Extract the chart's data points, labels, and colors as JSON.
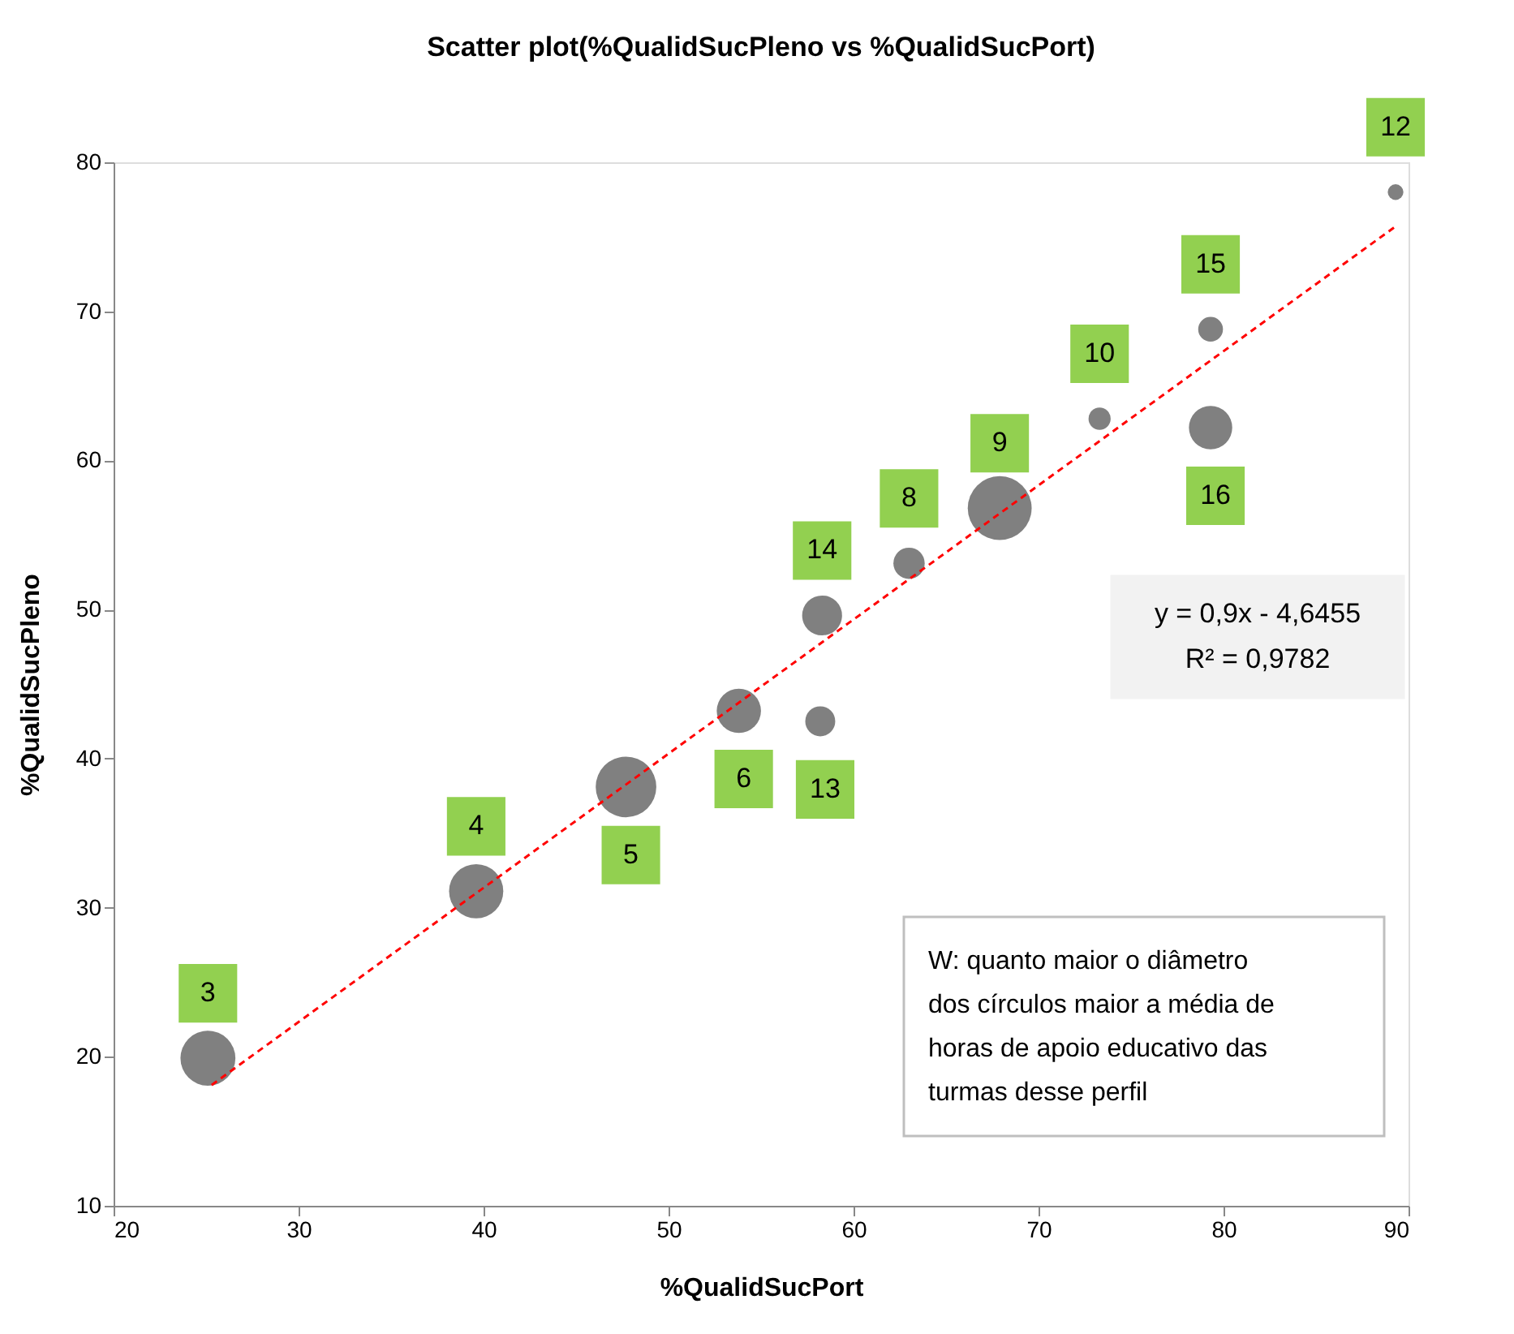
{
  "chart_data": {
    "type": "bubble",
    "title": "Scatter plot(%QualidSucPleno  vs %QualidSucPort)",
    "xlabel": "%QualidSucPort",
    "ylabel": "%QualidSucPleno",
    "xlim": [
      20,
      90
    ],
    "xticks": [
      20,
      30,
      40,
      50,
      60,
      70,
      80,
      90
    ],
    "ylim": [
      10,
      80
    ],
    "yticks": [
      10,
      20,
      30,
      40,
      50,
      60,
      70,
      80
    ],
    "grid": false,
    "legend": false,
    "marker": "circle",
    "series": [
      {
        "color": "#808080",
        "x": [
          25.1,
          39.6,
          47.7,
          53.8,
          58.2,
          58.3,
          63.0,
          67.9,
          73.3,
          79.3,
          79.3,
          89.3
        ],
        "values": [
          19.9,
          31.1,
          38.1,
          43.2,
          42.5,
          49.6,
          53.1,
          56.8,
          62.8,
          68.8,
          62.2,
          78.0
        ],
        "sizes": [
          0.74,
          0.72,
          0.9,
          0.48,
          0.22,
          0.39,
          0.24,
          1,
          0.12,
          0.15,
          0.46,
          0.06
        ]
      },
      {
        "type": "line",
        "color": "#ff0000",
        "line_style": "dashed",
        "marker": "none",
        "x": [
          25.3,
          89.3
        ],
        "values": [
          18.1,
          75.7
        ]
      }
    ],
    "annotations": [
      {
        "text": "3",
        "x": 25.1,
        "y": 19.9
      },
      {
        "text": "4",
        "x": 39.6,
        "y": 31.1
      },
      {
        "text": "5",
        "x": 47.7,
        "y": 38.1
      },
      {
        "text": "6",
        "x": 53.8,
        "y": 43.2
      },
      {
        "text": "13",
        "x": 58.2,
        "y": 42.5
      },
      {
        "text": "14",
        "x": 58.3,
        "y": 49.6
      },
      {
        "text": "8",
        "x": 63.0,
        "y": 53.1
      },
      {
        "text": "9",
        "x": 67.9,
        "y": 56.8
      },
      {
        "text": "10",
        "x": 73.3,
        "y": 62.8
      },
      {
        "text": "15",
        "x": 79.3,
        "y": 68.8
      },
      {
        "text": "16",
        "x": 79.3,
        "y": 62.2
      },
      {
        "text": "12",
        "x": 89.3,
        "y": 78.0
      },
      "y = 0,9x - 4,6455\nR² = 0,9782",
      "W: quanto maior o diâmetro\ndos círculos maior a média de\nhoras de apoio educativo das\nturmas desse perfil"
    ]
  }
}
